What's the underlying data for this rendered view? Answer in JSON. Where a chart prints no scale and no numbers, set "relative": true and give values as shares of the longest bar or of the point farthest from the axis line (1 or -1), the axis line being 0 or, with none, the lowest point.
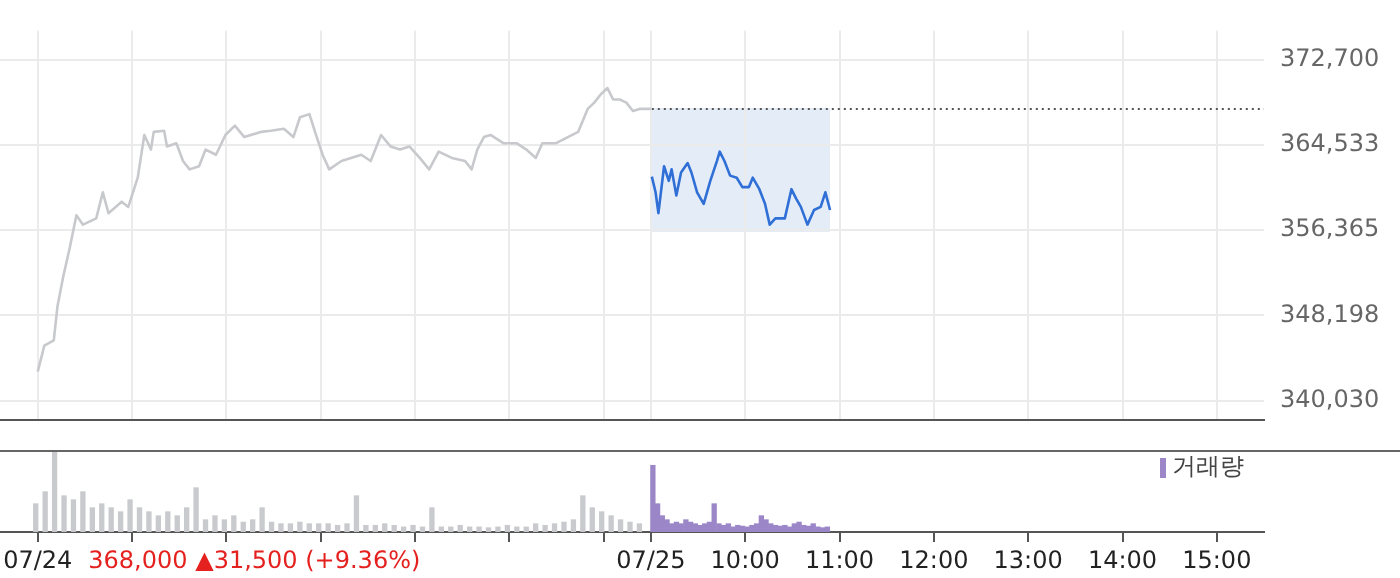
{
  "chart_data": [
    {
      "type": "line",
      "xlim": [
        2.1,
        15.5
      ],
      "ylim": [
        338200,
        375530
      ],
      "xticks": [
        {
          "value": 2.5,
          "label": null
        },
        {
          "value": 3.5,
          "label": null
        },
        {
          "value": 4.5,
          "label": null
        },
        {
          "value": 5.5,
          "label": null
        },
        {
          "value": 6.5,
          "label": null
        },
        {
          "value": 7.5,
          "label": null
        },
        {
          "value": 8.5,
          "label": null
        },
        {
          "value": 9,
          "label": null
        },
        {
          "value": 10,
          "label": null
        },
        {
          "value": 11,
          "label": null
        },
        {
          "value": 12,
          "label": null
        },
        {
          "value": 13,
          "label": null
        },
        {
          "value": 14,
          "label": null
        },
        {
          "value": 15,
          "label": null
        }
      ],
      "yticks": [
        {
          "value": 340030,
          "label": "340,030"
        },
        {
          "value": 348198,
          "label": "348,198"
        },
        {
          "value": 356365,
          "label": "356,365"
        },
        {
          "value": 364533,
          "label": "364,533"
        },
        {
          "value": 372700,
          "label": "372,700"
        }
      ],
      "tick_labels": "y",
      "grid": true,
      "marker": "none",
      "legend": false,
      "ref_lines": [
        {
          "axis": "y",
          "value": 368000,
          "color": "#555555",
          "line_style": "dotted"
        }
      ],
      "series": [
        {
          "color": "#c8c9cd",
          "x": [
            2.5,
            2.57,
            2.67,
            2.71,
            2.77,
            2.84,
            2.91,
            2.98,
            3.12,
            3.19,
            3.25,
            3.39,
            3.46,
            3.56,
            3.63,
            3.7,
            3.73,
            3.84,
            3.87,
            3.97,
            4.04,
            4.11,
            4.21,
            4.28,
            4.39,
            4.49,
            4.59,
            4.69,
            4.87,
            4.97,
            5.11,
            5.21,
            5.28,
            5.38,
            5.45,
            5.52,
            5.59,
            5.72,
            5.93,
            6.03,
            6.14,
            6.24,
            6.34,
            6.44,
            6.55,
            6.65,
            6.75,
            6.89,
            7.03,
            7.1,
            7.16,
            7.23,
            7.3,
            7.44,
            7.58,
            7.68,
            7.78,
            7.85,
            7.99,
            8.12,
            8.23,
            8.33,
            8.4,
            8.47,
            8.54,
            8.6,
            8.67,
            8.74,
            8.81,
            8.88,
            9.0
          ],
          "values": [
            342800,
            345300,
            345800,
            349100,
            351900,
            354700,
            357800,
            356900,
            357500,
            360000,
            358000,
            359100,
            358600,
            361400,
            365500,
            364100,
            365800,
            365900,
            364400,
            364700,
            363000,
            362200,
            362500,
            364100,
            363600,
            365500,
            366400,
            365300,
            365800,
            365900,
            366100,
            365300,
            367200,
            367500,
            365500,
            363600,
            362200,
            363000,
            363600,
            363000,
            365500,
            364400,
            364100,
            364400,
            363300,
            362200,
            363900,
            363300,
            363000,
            362200,
            364100,
            365300,
            365500,
            364700,
            364700,
            364100,
            363300,
            364700,
            364700,
            365300,
            365800,
            368000,
            368600,
            369400,
            370000,
            368900,
            368900,
            368600,
            367800,
            368000,
            368000
          ]
        },
        {
          "color": "#2f6fd6",
          "x": [
            9.01,
            9.05,
            9.08,
            9.14,
            9.19,
            9.22,
            9.27,
            9.32,
            9.39,
            9.43,
            9.49,
            9.56,
            9.63,
            9.7,
            9.73,
            9.78,
            9.84,
            9.91,
            9.97,
            10.04,
            10.08,
            10.15,
            10.21,
            10.26,
            10.32,
            10.42,
            10.49,
            10.54,
            10.59,
            10.66,
            10.73,
            10.8,
            10.85,
            10.9
          ],
          "values": [
            361500,
            360000,
            358000,
            362500,
            361100,
            362200,
            359700,
            361900,
            362800,
            361900,
            360000,
            358900,
            361100,
            363000,
            363900,
            363000,
            361600,
            361400,
            360500,
            360500,
            361400,
            360300,
            358900,
            356900,
            357500,
            357500,
            360300,
            359400,
            358600,
            356900,
            358300,
            358600,
            360000,
            358300
          ]
        }
      ]
    },
    {
      "type": "bar",
      "relative": true,
      "xlim": [
        2.1,
        15.5
      ],
      "xticks": [
        {
          "value": 2.5,
          "label": "07/24"
        },
        {
          "value": 3.5,
          "label": null
        },
        {
          "value": 4.5,
          "label": null
        },
        {
          "value": 5.5,
          "label": null
        },
        {
          "value": 6.5,
          "label": null
        },
        {
          "value": 7.5,
          "label": null
        },
        {
          "value": 8.5,
          "label": null
        },
        {
          "value": 9,
          "label": "07/25"
        },
        {
          "value": 10,
          "label": "10:00"
        },
        {
          "value": 11,
          "label": "11:00"
        },
        {
          "value": 12,
          "label": "12:00"
        },
        {
          "value": 13,
          "label": "13:00"
        },
        {
          "value": 14,
          "label": "14:00"
        },
        {
          "value": 15,
          "label": "15:00"
        }
      ],
      "tick_labels": "x",
      "legend": "top right",
      "grid": false,
      "annotations": [
        "368,000 ▲31,500 (+9.36%)"
      ],
      "series": [
        {
          "color": "#c9cacd",
          "x": [
            2.5,
            2.6,
            2.7,
            2.8,
            2.9,
            3.0,
            3.1,
            3.2,
            3.3,
            3.4,
            3.5,
            3.6,
            3.7,
            3.8,
            3.9,
            4.0,
            4.1,
            4.2,
            4.3,
            4.4,
            4.5,
            4.6,
            4.7,
            4.8,
            4.9,
            5.0,
            5.1,
            5.2,
            5.3,
            5.4,
            5.5,
            5.6,
            5.7,
            5.8,
            5.9,
            6.0,
            6.1,
            6.2,
            6.3,
            6.4,
            6.5,
            6.6,
            6.7,
            6.8,
            6.9,
            7.0,
            7.1,
            7.2,
            7.3,
            7.4,
            7.5,
            7.6,
            7.7,
            7.8,
            7.9,
            8.0,
            8.1,
            8.2,
            8.3,
            8.4,
            8.5,
            8.6,
            8.7,
            8.8,
            8.9
          ],
          "values": [
            0.35,
            0.5,
            1.0,
            0.45,
            0.4,
            0.5,
            0.3,
            0.35,
            0.3,
            0.25,
            0.4,
            0.3,
            0.25,
            0.2,
            0.25,
            0.2,
            0.3,
            0.55,
            0.15,
            0.2,
            0.15,
            0.2,
            0.12,
            0.15,
            0.3,
            0.12,
            0.1,
            0.1,
            0.12,
            0.1,
            0.1,
            0.1,
            0.08,
            0.1,
            0.45,
            0.08,
            0.08,
            0.1,
            0.08,
            0.06,
            0.08,
            0.06,
            0.3,
            0.06,
            0.06,
            0.08,
            0.06,
            0.06,
            0.05,
            0.06,
            0.08,
            0.06,
            0.06,
            0.1,
            0.08,
            0.1,
            0.12,
            0.15,
            0.45,
            0.3,
            0.25,
            0.2,
            0.15,
            0.12,
            0.1
          ]
        },
        {
          "name": "거래량",
          "color": "#9b86c8",
          "x": [
            9.0,
            9.05,
            9.1,
            9.15,
            9.2,
            9.25,
            9.3,
            9.35,
            9.4,
            9.45,
            9.5,
            9.55,
            9.6,
            9.65,
            9.7,
            9.75,
            9.8,
            9.85,
            9.9,
            9.95,
            10.0,
            10.05,
            10.1,
            10.15,
            10.2,
            10.25,
            10.3,
            10.35,
            10.4,
            10.45,
            10.5,
            10.55,
            10.6,
            10.65,
            10.7,
            10.75,
            10.8,
            10.85
          ],
          "values": [
            0.83,
            0.35,
            0.2,
            0.15,
            0.1,
            0.12,
            0.1,
            0.15,
            0.12,
            0.1,
            0.08,
            0.1,
            0.12,
            0.35,
            0.1,
            0.08,
            0.1,
            0.06,
            0.08,
            0.07,
            0.06,
            0.08,
            0.1,
            0.2,
            0.15,
            0.1,
            0.08,
            0.07,
            0.08,
            0.06,
            0.1,
            0.12,
            0.08,
            0.07,
            0.1,
            0.06,
            0.05,
            0.06
          ]
        }
      ]
    }
  ]
}
